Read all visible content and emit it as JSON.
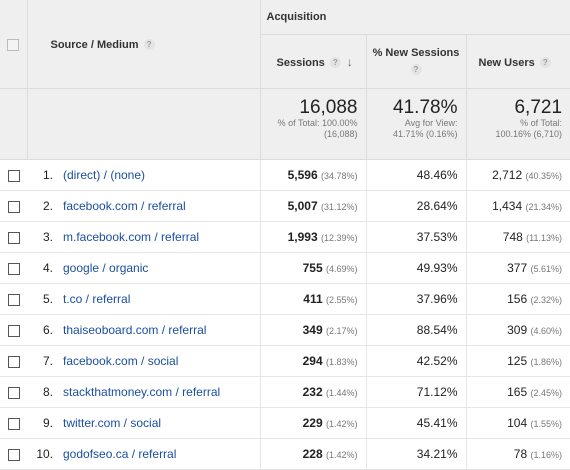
{
  "header": {
    "group_label": "Acquisition",
    "dimension_label": "Source / Medium",
    "columns": {
      "sessions": "Sessions",
      "new_sessions": "% New Sessions",
      "new_users": "New Users"
    },
    "help_icon": "?",
    "sort_icon": "arrow-down"
  },
  "totals": {
    "sessions": {
      "value": "16,088",
      "line1": "% of Total: 100.00%",
      "line2": "(16,088)"
    },
    "new_sessions": {
      "value": "41.78%",
      "line1": "Avg for View:",
      "line2": "41.71% (0.16%)"
    },
    "new_users": {
      "value": "6,721",
      "line1": "% of Total:",
      "line2": "100.16% (6,710)"
    }
  },
  "rows": [
    {
      "idx": "1.",
      "source": "(direct) / (none)",
      "sessions": "5,596",
      "sessions_pct": "(34.78%)",
      "new_sessions": "48.46%",
      "new_users": "2,712",
      "new_users_pct": "(40.35%)"
    },
    {
      "idx": "2.",
      "source": "facebook.com / referral",
      "sessions": "5,007",
      "sessions_pct": "(31.12%)",
      "new_sessions": "28.64%",
      "new_users": "1,434",
      "new_users_pct": "(21.34%)"
    },
    {
      "idx": "3.",
      "source": "m.facebook.com / referral",
      "sessions": "1,993",
      "sessions_pct": "(12.39%)",
      "new_sessions": "37.53%",
      "new_users": "748",
      "new_users_pct": "(11.13%)"
    },
    {
      "idx": "4.",
      "source": "google / organic",
      "sessions": "755",
      "sessions_pct": "(4.69%)",
      "new_sessions": "49.93%",
      "new_users": "377",
      "new_users_pct": "(5.61%)"
    },
    {
      "idx": "5.",
      "source": "t.co / referral",
      "sessions": "411",
      "sessions_pct": "(2.55%)",
      "new_sessions": "37.96%",
      "new_users": "156",
      "new_users_pct": "(2.32%)"
    },
    {
      "idx": "6.",
      "source": "thaiseoboard.com / referral",
      "sessions": "349",
      "sessions_pct": "(2.17%)",
      "new_sessions": "88.54%",
      "new_users": "309",
      "new_users_pct": "(4.60%)"
    },
    {
      "idx": "7.",
      "source": "facebook.com / social",
      "sessions": "294",
      "sessions_pct": "(1.83%)",
      "new_sessions": "42.52%",
      "new_users": "125",
      "new_users_pct": "(1.86%)"
    },
    {
      "idx": "8.",
      "source": "stackthatmoney.com / referral",
      "sessions": "232",
      "sessions_pct": "(1.44%)",
      "new_sessions": "71.12%",
      "new_users": "165",
      "new_users_pct": "(2.45%)"
    },
    {
      "idx": "9.",
      "source": "twitter.com / social",
      "sessions": "229",
      "sessions_pct": "(1.42%)",
      "new_sessions": "45.41%",
      "new_users": "104",
      "new_users_pct": "(1.55%)"
    },
    {
      "idx": "10.",
      "source": "godofseo.ca / referral",
      "sessions": "228",
      "sessions_pct": "(1.42%)",
      "new_sessions": "34.21%",
      "new_users": "78",
      "new_users_pct": "(1.16%)"
    }
  ],
  "colors": {
    "link": "#1a4ea0",
    "header_bg": "#efefef",
    "border": "#dcdcdc"
  }
}
